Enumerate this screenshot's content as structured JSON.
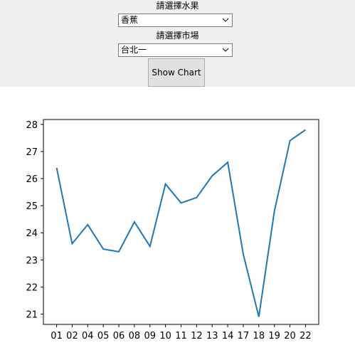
{
  "controls": {
    "fruit_label": "請選擇水果",
    "fruit_value": "香蕉",
    "market_label": "請選擇市場",
    "market_value": "台北一",
    "show_button": "Show Chart"
  },
  "icons": {
    "combo_arrow": "chevron-down-icon"
  },
  "colors": {
    "line": "#1f77b4",
    "panel": "#f0f0f0"
  },
  "chart_data": {
    "type": "line",
    "title": "",
    "xlabel": "",
    "ylabel": "",
    "categories": [
      "01",
      "02",
      "04",
      "05",
      "06",
      "08",
      "09",
      "10",
      "11",
      "12",
      "13",
      "14",
      "17",
      "18",
      "19",
      "20",
      "22"
    ],
    "values": [
      26.4,
      23.6,
      24.3,
      23.4,
      23.3,
      24.4,
      23.5,
      25.8,
      25.1,
      25.3,
      26.1,
      26.6,
      23.2,
      20.9,
      24.8,
      27.4,
      27.8
    ],
    "yticks": [
      "21",
      "22",
      "23",
      "24",
      "25",
      "26",
      "27",
      "28"
    ],
    "ylim": [
      20.62,
      28.18
    ],
    "grid": false
  }
}
